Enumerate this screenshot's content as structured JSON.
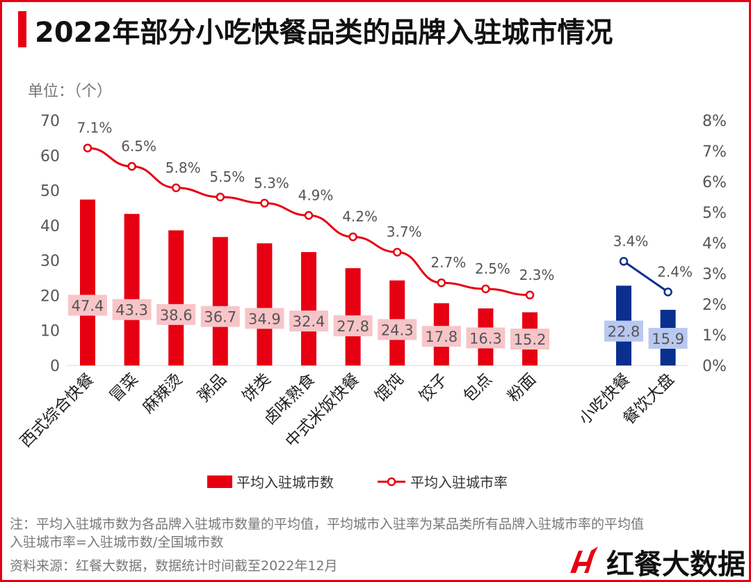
{
  "title": "2022年部分小吃快餐品类的品牌入驻城市情况",
  "unit_label": "单位：（个）",
  "notes": [
    "注：平均入驻城市数为各品牌入驻城市数量的平均值，平均城市入驻率为某品类所有品牌入驻城市率的平均值",
    "入驻城市率=入驻城市数/全国城市数"
  ],
  "source": "资料来源：红餐大数据，数据统计时间截至2022年12月",
  "logo_text": "红餐大数据",
  "colors": {
    "accent": "#e60012",
    "blue": "#0a2f8f",
    "red_label_bg": "#f7c5c8",
    "blue_label_bg": "#b9c8f0"
  },
  "chart_data": {
    "type": "bar+line",
    "categories": [
      "西式综合快餐",
      "冒菜",
      "麻辣烫",
      "粥品",
      "饼类",
      "卤味熟食",
      "中式米饭快餐",
      "馄饨",
      "饺子",
      "包点",
      "粉面",
      "小吃快餐",
      "餐饮大盘"
    ],
    "series": [
      {
        "name": "平均入驻城市数",
        "type": "bar",
        "axis": "left",
        "values": [
          47.4,
          43.3,
          38.6,
          36.7,
          34.9,
          32.4,
          27.8,
          24.3,
          17.8,
          16.3,
          15.2,
          22.8,
          15.9
        ],
        "labels": [
          "47.4",
          "43.3",
          "38.6",
          "36.7",
          "34.9",
          "32.4",
          "27.8",
          "24.3",
          "17.8",
          "16.3",
          "15.2",
          "22.8",
          "15.9"
        ]
      },
      {
        "name": "平均入驻城市率",
        "type": "line",
        "axis": "right",
        "values": [
          7.1,
          6.5,
          5.8,
          5.5,
          5.3,
          4.9,
          4.2,
          3.7,
          2.7,
          2.5,
          2.3,
          3.4,
          2.4
        ],
        "labels": [
          "7.1%",
          "6.5%",
          "5.8%",
          "5.5%",
          "5.3%",
          "4.9%",
          "4.2%",
          "3.7%",
          "2.7%",
          "2.5%",
          "2.3%",
          "3.4%",
          "2.4%"
        ]
      }
    ],
    "highlight_categories": [
      "小吃快餐",
      "餐饮大盘"
    ],
    "y_left": {
      "range": [
        0,
        70
      ],
      "ticks": [
        "0",
        "10",
        "20",
        "30",
        "40",
        "50",
        "60",
        "70"
      ]
    },
    "y_right": {
      "range": [
        0,
        8
      ],
      "ticks": [
        "0%",
        "1%",
        "2%",
        "3%",
        "4%",
        "5%",
        "6%",
        "7%",
        "8%"
      ]
    },
    "legend_position": "bottom",
    "grid": false
  }
}
